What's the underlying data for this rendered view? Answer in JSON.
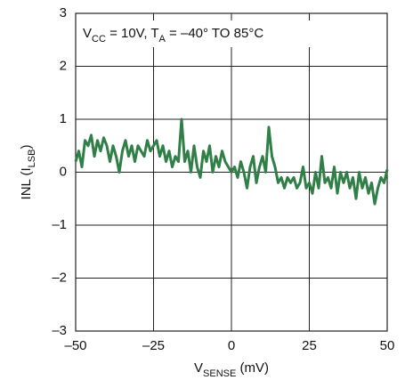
{
  "chart_data": {
    "type": "line",
    "annotation": [
      "V",
      "CC",
      " = 10V, T",
      "A",
      " = –40° TO 85°C"
    ],
    "x_label": [
      "V",
      "SENSE",
      " (mV)"
    ],
    "y_label": [
      "INL (I",
      "LSB",
      ")"
    ],
    "x": [
      -50,
      -49,
      -48,
      -47,
      -46,
      -45,
      -44,
      -43,
      -42,
      -41,
      -40,
      -39,
      -38,
      -37,
      -36,
      -35,
      -34,
      -33,
      -32,
      -31,
      -30,
      -29,
      -28,
      -27,
      -26,
      -25,
      -24,
      -23,
      -22,
      -21,
      -20,
      -19,
      -18,
      -17,
      -16,
      -15,
      -14,
      -13,
      -12,
      -11,
      -10,
      -9,
      -8,
      -7,
      -6,
      -5,
      -4,
      -3,
      -2,
      -1,
      0,
      1,
      2,
      3,
      4,
      5,
      6,
      7,
      8,
      9,
      10,
      11,
      12,
      13,
      14,
      15,
      16,
      17,
      18,
      19,
      20,
      21,
      22,
      23,
      24,
      25,
      26,
      27,
      28,
      29,
      30,
      31,
      32,
      33,
      34,
      35,
      36,
      37,
      38,
      39,
      40,
      41,
      42,
      43,
      44,
      45,
      46,
      47,
      48,
      49,
      50
    ],
    "values": [
      0.2,
      0.4,
      0.1,
      0.6,
      0.5,
      0.7,
      0.3,
      0.6,
      0.4,
      0.65,
      0.5,
      0.2,
      0.5,
      0.3,
      0.0,
      0.4,
      0.6,
      0.3,
      0.5,
      0.2,
      0.5,
      0.4,
      0.3,
      0.6,
      0.4,
      0.5,
      0.6,
      0.3,
      0.5,
      0.2,
      0.4,
      0.1,
      0.3,
      0.2,
      1.0,
      0.2,
      0.4,
      0.0,
      0.5,
      0.1,
      -0.1,
      0.4,
      0.2,
      0.5,
      0.0,
      0.3,
      0.1,
      0.4,
      0.2,
      0.1,
      0.0,
      0.1,
      -0.1,
      0.2,
      0.0,
      -0.3,
      0.1,
      0.3,
      -0.2,
      0.1,
      0.3,
      0.0,
      0.85,
      0.3,
      0.1,
      -0.2,
      -0.1,
      -0.3,
      -0.1,
      -0.2,
      -0.1,
      -0.3,
      -0.2,
      0.1,
      -0.3,
      -0.2,
      -0.4,
      0.0,
      -0.3,
      0.3,
      -0.2,
      -0.1,
      -0.3,
      0.1,
      -0.4,
      0.0,
      -0.2,
      0.0,
      -0.3,
      -0.1,
      -0.5,
      0.0,
      -0.3,
      -0.1,
      -0.4,
      -0.2,
      -0.6,
      -0.3,
      -0.1,
      -0.2,
      0.05
    ],
    "color": "#2f7f47",
    "xlim": [
      -50,
      50
    ],
    "xticks": [
      {
        "value": -50,
        "label": "–50"
      },
      {
        "value": -25,
        "label": "–25"
      },
      0,
      25,
      50
    ],
    "ylim": [
      -3,
      3
    ],
    "yticks": [
      {
        "value": -3,
        "label": "–3"
      },
      {
        "value": -2,
        "label": "–2"
      },
      {
        "value": -1,
        "label": "–1"
      },
      0,
      1,
      2,
      3
    ],
    "grid": true
  }
}
